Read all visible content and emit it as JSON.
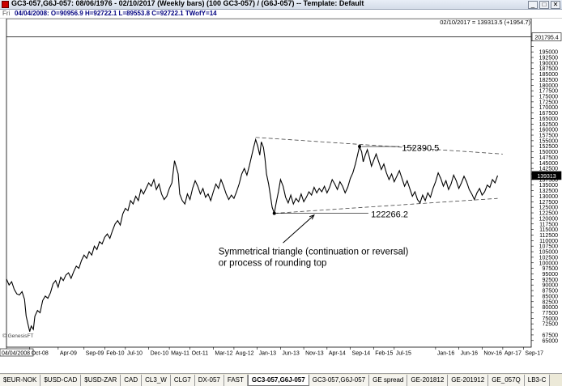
{
  "window": {
    "title": "GC3-057,G6J-057:  08/06/1976 - 02/10/2017  (Weekly bars)   (100 GC3-057) / (G6J-057)   --   Template: Default",
    "buttons": [
      "_",
      "□",
      "✕"
    ]
  },
  "quote": {
    "day": "Fri",
    "ohlc": "04/04/2008:  O=90956.9  H=92722.1  L=89553.8  C=92722.1  TWofY=14"
  },
  "header_right": "02/10/2017 = 139313.5 (+1954.7)",
  "watermark": "© GenesisFT",
  "tabs": [
    {
      "label": "$EUR-NOK",
      "active": false
    },
    {
      "label": "$USD-CAD",
      "active": false
    },
    {
      "label": "$USD-ZAR",
      "active": false
    },
    {
      "label": "CAD",
      "active": false
    },
    {
      "label": "CL3_W",
      "active": false
    },
    {
      "label": "CLG7",
      "active": false
    },
    {
      "label": "DX-057",
      "active": false
    },
    {
      "label": "FAST",
      "active": false
    },
    {
      "label": "GC3-057,G6J-057",
      "active": true
    },
    {
      "label": "GC3-057,G6J-057",
      "active": false
    },
    {
      "label": "GE spread",
      "active": false
    },
    {
      "label": "GE-201812",
      "active": false
    },
    {
      "label": "GE-201912",
      "active": false
    },
    {
      "label": "GE_057Q",
      "active": false
    },
    {
      "label": "LB3-C",
      "active": false
    }
  ],
  "colors": {
    "line": "#000000",
    "grid": "#c8c8c8",
    "highlight_label": "#000000",
    "trendline": "#444444"
  },
  "chart_data": {
    "type": "line",
    "title": "",
    "xlabel": "",
    "ylabel": "",
    "y_ticks": [
      65000,
      67500,
      70000,
      72500,
      75000,
      77500,
      80000,
      82500,
      85000,
      87500,
      90000,
      92500,
      95000,
      97500,
      100000,
      102500,
      105000,
      107500,
      110000,
      112500,
      115000,
      117500,
      120000,
      122500,
      125000,
      127500,
      130000,
      132500,
      135000,
      137500,
      140000,
      142500,
      145000,
      147500,
      150000,
      152500,
      155000,
      157500,
      160000,
      162500,
      165000,
      167500,
      170000,
      172500,
      175000,
      177500,
      180000,
      182500,
      185000,
      187500,
      190000,
      192500,
      195000,
      197500,
      200000
    ],
    "y_ticks_labeled": [
      65000,
      67500,
      72500,
      75000,
      77500,
      80000,
      82500,
      85000,
      87500,
      90000,
      92500,
      95000,
      97500,
      100000,
      102500,
      105000,
      107500,
      110000,
      112500,
      115000,
      117500,
      120000,
      122500,
      125000,
      127500,
      130000,
      132500,
      135000,
      137500,
      142500,
      145000,
      147500,
      150000,
      152500,
      155000,
      157500,
      160000,
      162500,
      165000,
      167500,
      170000,
      172500,
      175000,
      177500,
      180000,
      182500,
      185000,
      187500,
      190000,
      192500,
      195000
    ],
    "y_tick_labels": [
      "65000",
      "67500",
      "72500",
      "75000",
      "77500",
      "80000",
      "82500",
      "85000",
      "87500",
      "90000",
      "92500",
      "95000",
      "97500",
      "100000",
      "102500",
      "105000",
      "107500",
      "110000",
      "112500",
      "115000",
      "117500",
      "120000",
      "122500",
      "125000",
      "127500",
      "130000",
      "132500",
      "135000",
      "137500",
      "142500",
      "145000",
      "147500",
      "150000",
      "152500",
      "155000",
      "157500",
      "160000",
      "162500",
      "165000",
      "167500",
      "170000",
      "172500",
      "175000",
      "177500",
      "180000",
      "182500",
      "185000",
      "187500",
      "190000",
      "192500",
      "195000"
    ],
    "ylim": [
      62000,
      210000
    ],
    "y_flags": [
      {
        "value": 201795.4,
        "label": "201795.4"
      },
      {
        "value": 139313,
        "label": "139313"
      }
    ],
    "x_ticks": [
      {
        "t": 0,
        "label": "04/04/2008"
      },
      {
        "t": 0.45,
        "label": "Oct-08"
      },
      {
        "t": 1.0,
        "label": "Apr-09"
      },
      {
        "t": 1.5,
        "label": "Sep-09"
      },
      {
        "t": 1.9,
        "label": "Feb-10"
      },
      {
        "t": 2.3,
        "label": "Jul-10"
      },
      {
        "t": 2.75,
        "label": "Dec-10"
      },
      {
        "t": 3.15,
        "label": "May-11"
      },
      {
        "t": 3.55,
        "label": "Oct-11"
      },
      {
        "t": 4.0,
        "label": "Mar-12"
      },
      {
        "t": 4.4,
        "label": "Aug-12"
      },
      {
        "t": 4.85,
        "label": "Jan-13"
      },
      {
        "t": 5.3,
        "label": "Jun-13"
      },
      {
        "t": 5.75,
        "label": "Nov-13"
      },
      {
        "t": 6.2,
        "label": "Apr-14"
      },
      {
        "t": 6.65,
        "label": "Sep-14"
      },
      {
        "t": 7.1,
        "label": "Feb-15"
      },
      {
        "t": 7.5,
        "label": "Jul-15"
      },
      {
        "t": 8.3,
        "label": "Jan-16"
      },
      {
        "t": 8.75,
        "label": "Jun-16"
      },
      {
        "t": 9.2,
        "label": "Nov-16"
      },
      {
        "t": 9.6,
        "label": "Apr-17"
      },
      {
        "t": 10.0,
        "label": "Sep-17"
      }
    ],
    "xlim": [
      0,
      10.15
    ],
    "series": [
      {
        "name": "",
        "points": [
          [
            0,
            92700
          ],
          [
            0.05,
            90000
          ],
          [
            0.1,
            91500
          ],
          [
            0.15,
            88000
          ],
          [
            0.2,
            86000
          ],
          [
            0.25,
            85500
          ],
          [
            0.3,
            87000
          ],
          [
            0.35,
            83500
          ],
          [
            0.38,
            76000
          ],
          [
            0.42,
            72000
          ],
          [
            0.45,
            69000
          ],
          [
            0.48,
            71500
          ],
          [
            0.52,
            70000
          ],
          [
            0.55,
            76000
          ],
          [
            0.6,
            78500
          ],
          [
            0.65,
            77500
          ],
          [
            0.7,
            83000
          ],
          [
            0.75,
            85000
          ],
          [
            0.8,
            84000
          ],
          [
            0.85,
            86500
          ],
          [
            0.9,
            90500
          ],
          [
            0.95,
            92000
          ],
          [
            1.0,
            89000
          ],
          [
            1.05,
            93500
          ],
          [
            1.1,
            92000
          ],
          [
            1.15,
            94500
          ],
          [
            1.2,
            95500
          ],
          [
            1.25,
            93000
          ],
          [
            1.3,
            96000
          ],
          [
            1.35,
            98500
          ],
          [
            1.4,
            97500
          ],
          [
            1.45,
            101000
          ],
          [
            1.5,
            103500
          ],
          [
            1.55,
            102000
          ],
          [
            1.6,
            105000
          ],
          [
            1.65,
            103500
          ],
          [
            1.7,
            107500
          ],
          [
            1.75,
            106000
          ],
          [
            1.8,
            109500
          ],
          [
            1.85,
            108500
          ],
          [
            1.9,
            111500
          ],
          [
            1.95,
            113000
          ],
          [
            2.0,
            111000
          ],
          [
            2.05,
            114500
          ],
          [
            2.1,
            117500
          ],
          [
            2.15,
            119000
          ],
          [
            2.2,
            117000
          ],
          [
            2.25,
            122000
          ],
          [
            2.3,
            124500
          ],
          [
            2.35,
            123500
          ],
          [
            2.4,
            128000
          ],
          [
            2.45,
            126500
          ],
          [
            2.5,
            130000
          ],
          [
            2.55,
            128000
          ],
          [
            2.6,
            133000
          ],
          [
            2.65,
            131000
          ],
          [
            2.7,
            133500
          ],
          [
            2.75,
            136000
          ],
          [
            2.8,
            134500
          ],
          [
            2.85,
            137500
          ],
          [
            2.9,
            133000
          ],
          [
            2.95,
            135500
          ],
          [
            3.0,
            131000
          ],
          [
            3.05,
            128500
          ],
          [
            3.1,
            130000
          ],
          [
            3.15,
            133500
          ],
          [
            3.2,
            136000
          ],
          [
            3.25,
            146000
          ],
          [
            3.28,
            143500
          ],
          [
            3.32,
            140000
          ],
          [
            3.35,
            131000
          ],
          [
            3.4,
            128000
          ],
          [
            3.45,
            126500
          ],
          [
            3.5,
            131000
          ],
          [
            3.55,
            128500
          ],
          [
            3.6,
            133500
          ],
          [
            3.65,
            137000
          ],
          [
            3.7,
            134500
          ],
          [
            3.75,
            131000
          ],
          [
            3.8,
            133500
          ],
          [
            3.85,
            129500
          ],
          [
            3.9,
            131000
          ],
          [
            3.95,
            128000
          ],
          [
            4.0,
            132000
          ],
          [
            4.05,
            135500
          ],
          [
            4.1,
            133500
          ],
          [
            4.15,
            137500
          ],
          [
            4.2,
            134500
          ],
          [
            4.25,
            131000
          ],
          [
            4.3,
            128500
          ],
          [
            4.35,
            130500
          ],
          [
            4.4,
            129000
          ],
          [
            4.45,
            132000
          ],
          [
            4.5,
            135500
          ],
          [
            4.55,
            140000
          ],
          [
            4.6,
            142500
          ],
          [
            4.65,
            139500
          ],
          [
            4.7,
            144000
          ],
          [
            4.75,
            149000
          ],
          [
            4.78,
            152000
          ],
          [
            4.82,
            155500
          ],
          [
            4.86,
            152500
          ],
          [
            4.9,
            148500
          ],
          [
            4.93,
            154500
          ],
          [
            4.97,
            152000
          ],
          [
            5.0,
            147000
          ],
          [
            5.03,
            140000
          ],
          [
            5.07,
            135500
          ],
          [
            5.1,
            131000
          ],
          [
            5.14,
            125000
          ],
          [
            5.18,
            122300
          ],
          [
            5.22,
            127500
          ],
          [
            5.26,
            132000
          ],
          [
            5.3,
            137500
          ],
          [
            5.35,
            134500
          ],
          [
            5.4,
            129500
          ],
          [
            5.45,
            127000
          ],
          [
            5.5,
            130500
          ],
          [
            5.55,
            126500
          ],
          [
            5.6,
            129000
          ],
          [
            5.65,
            127500
          ],
          [
            5.7,
            131000
          ],
          [
            5.75,
            127500
          ],
          [
            5.8,
            129500
          ],
          [
            5.85,
            132000
          ],
          [
            5.9,
            130500
          ],
          [
            5.95,
            134000
          ],
          [
            6.0,
            131500
          ],
          [
            6.05,
            133500
          ],
          [
            6.1,
            132000
          ],
          [
            6.15,
            134500
          ],
          [
            6.2,
            131500
          ],
          [
            6.25,
            134000
          ],
          [
            6.3,
            137500
          ],
          [
            6.35,
            135500
          ],
          [
            6.4,
            133000
          ],
          [
            6.45,
            136500
          ],
          [
            6.5,
            134500
          ],
          [
            6.55,
            131500
          ],
          [
            6.6,
            134000
          ],
          [
            6.65,
            138000
          ],
          [
            6.7,
            140500
          ],
          [
            6.75,
            144500
          ],
          [
            6.8,
            149500
          ],
          [
            6.83,
            152400
          ],
          [
            6.87,
            150000
          ],
          [
            6.9,
            145500
          ],
          [
            6.94,
            148500
          ],
          [
            6.98,
            151000
          ],
          [
            7.02,
            147500
          ],
          [
            7.06,
            143500
          ],
          [
            7.1,
            146000
          ],
          [
            7.15,
            149000
          ],
          [
            7.2,
            145500
          ],
          [
            7.25,
            142000
          ],
          [
            7.3,
            144500
          ],
          [
            7.35,
            140500
          ],
          [
            7.4,
            137500
          ],
          [
            7.45,
            140000
          ],
          [
            7.5,
            136500
          ],
          [
            7.55,
            139000
          ],
          [
            7.6,
            141500
          ],
          [
            7.65,
            138000
          ],
          [
            7.7,
            134500
          ],
          [
            7.75,
            137000
          ],
          [
            7.8,
            133500
          ],
          [
            7.85,
            130000
          ],
          [
            7.9,
            132000
          ],
          [
            7.95,
            128500
          ],
          [
            8.0,
            127000
          ],
          [
            8.05,
            130500
          ],
          [
            8.1,
            128000
          ],
          [
            8.15,
            131500
          ],
          [
            8.2,
            129500
          ],
          [
            8.25,
            133500
          ],
          [
            8.3,
            136500
          ],
          [
            8.35,
            140500
          ],
          [
            8.4,
            138000
          ],
          [
            8.45,
            134500
          ],
          [
            8.5,
            137000
          ],
          [
            8.55,
            133000
          ],
          [
            8.6,
            135500
          ],
          [
            8.65,
            139500
          ],
          [
            8.7,
            137000
          ],
          [
            8.75,
            133500
          ],
          [
            8.8,
            136000
          ],
          [
            8.85,
            139000
          ],
          [
            8.9,
            136500
          ],
          [
            8.95,
            133000
          ],
          [
            9.0,
            131000
          ],
          [
            9.05,
            128500
          ],
          [
            9.1,
            131500
          ],
          [
            9.15,
            133500
          ],
          [
            9.2,
            130500
          ],
          [
            9.25,
            132000
          ],
          [
            9.3,
            135000
          ],
          [
            9.35,
            134000
          ],
          [
            9.4,
            137500
          ],
          [
            9.45,
            136000
          ],
          [
            9.5,
            139300
          ]
        ]
      }
    ],
    "trendlines": [
      {
        "from": [
          4.82,
          156500
        ],
        "to": [
          9.6,
          149000
        ],
        "style": "dashed"
      },
      {
        "from": [
          5.18,
          122300
        ],
        "to": [
          9.5,
          129000
        ],
        "style": "dashed"
      }
    ],
    "markers": [
      {
        "x": 6.83,
        "y": 152400
      },
      {
        "x": 5.18,
        "y": 122300
      }
    ],
    "annotations": [
      {
        "text": "152390.5",
        "x": 7.65,
        "y": 151800,
        "pointer_from": [
          6.87,
          152390
        ],
        "pointer_to": [
          7.6,
          152390
        ]
      },
      {
        "text": "122266.2",
        "x": 7.05,
        "y": 122000,
        "pointer_from": [
          5.22,
          122266
        ],
        "pointer_to": [
          7.0,
          122266
        ]
      },
      {
        "lines": [
          "Symmetrical triangle (continuation or reversal)",
          "or process of rounding top"
        ],
        "x": 4.1,
        "y": 105200,
        "arrow_from": [
          5.35,
          109000
        ],
        "arrow_to": [
          5.95,
          121500
        ]
      }
    ]
  }
}
